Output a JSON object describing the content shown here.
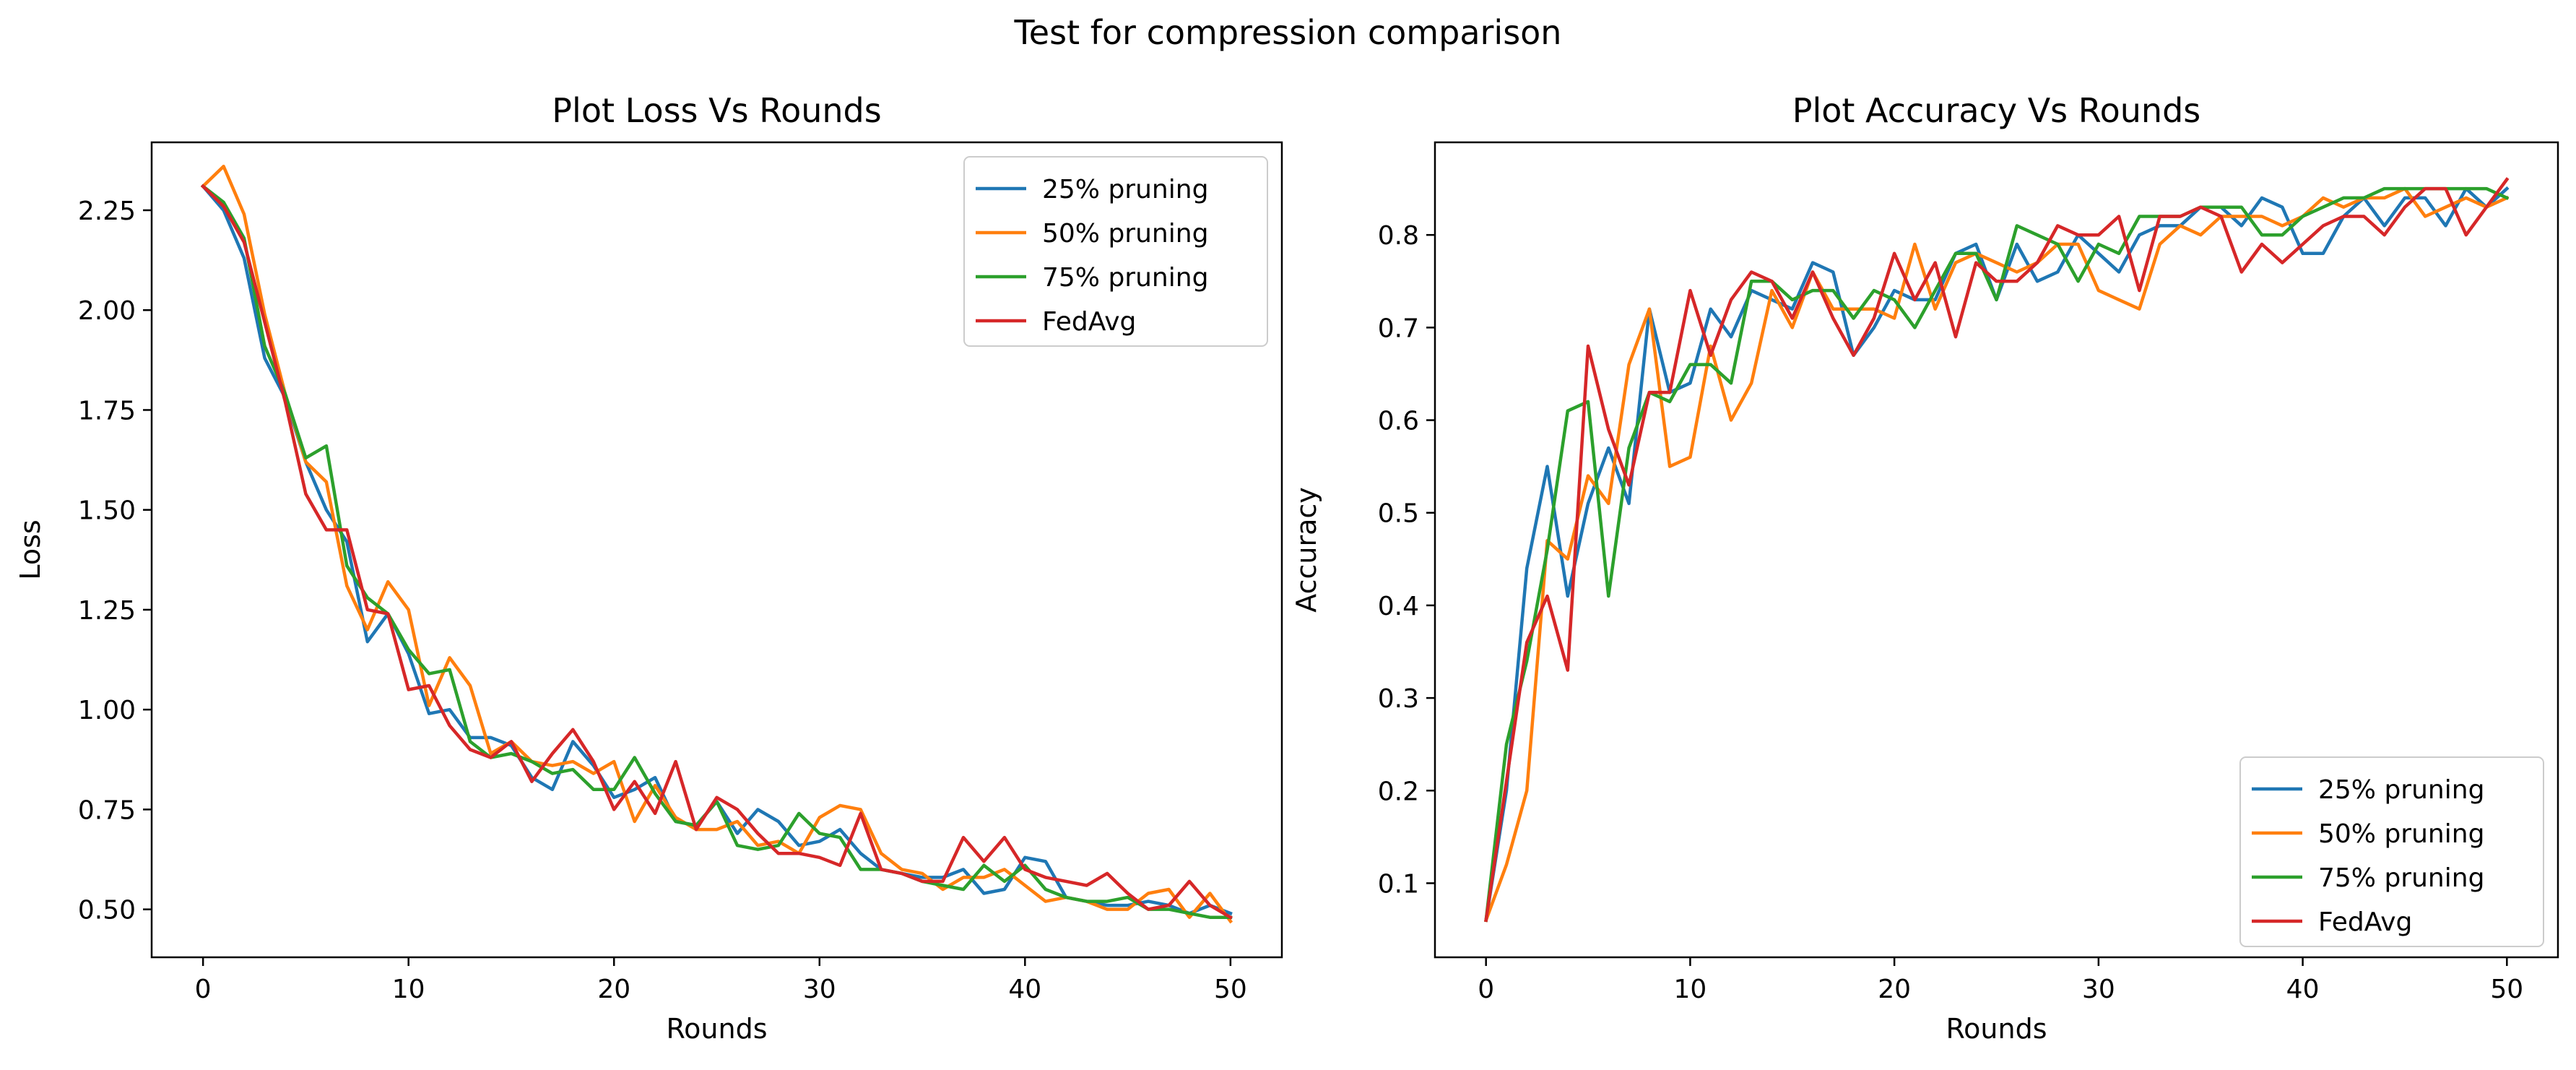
{
  "figure": {
    "title": "Test for compression comparison"
  },
  "colors": {
    "c25": "#1f77b4",
    "c50": "#ff7f0e",
    "c75": "#2ca02c",
    "fedavg": "#d62728"
  },
  "chart_data": [
    {
      "type": "line",
      "title": "Plot Loss Vs Rounds",
      "xlabel": "Rounds",
      "ylabel": "Loss",
      "xlim": [
        -2.5,
        52.5
      ],
      "ylim": [
        0.38,
        2.42
      ],
      "xticks": [
        0,
        10,
        20,
        30,
        40,
        50
      ],
      "yticks": [
        0.5,
        0.75,
        1.0,
        1.25,
        1.5,
        1.75,
        2.0,
        2.25
      ],
      "ytick_labels": [
        "0.50",
        "0.75",
        "1.00",
        "1.25",
        "1.50",
        "1.75",
        "2.00",
        "2.25"
      ],
      "xtick_labels": [
        "0",
        "10",
        "20",
        "30",
        "40",
        "50"
      ],
      "legend_position": "upper right",
      "grid": false,
      "x": [
        0,
        1,
        2,
        3,
        4,
        5,
        6,
        7,
        8,
        9,
        10,
        11,
        12,
        13,
        14,
        15,
        16,
        17,
        18,
        19,
        20,
        21,
        22,
        23,
        24,
        25,
        26,
        27,
        28,
        29,
        30,
        31,
        32,
        33,
        34,
        35,
        36,
        37,
        38,
        39,
        40,
        41,
        42,
        43,
        44,
        45,
        46,
        47,
        48,
        49,
        50
      ],
      "series": [
        {
          "name": "25% pruning",
          "color": "#1f77b4",
          "values": [
            2.31,
            2.25,
            2.13,
            1.88,
            1.78,
            1.62,
            1.5,
            1.42,
            1.17,
            1.24,
            1.14,
            0.99,
            1.0,
            0.93,
            0.93,
            0.91,
            0.83,
            0.8,
            0.92,
            0.86,
            0.78,
            0.8,
            0.83,
            0.72,
            0.71,
            0.77,
            0.69,
            0.75,
            0.72,
            0.66,
            0.67,
            0.7,
            0.64,
            0.6,
            0.59,
            0.58,
            0.58,
            0.6,
            0.54,
            0.55,
            0.63,
            0.62,
            0.53,
            0.52,
            0.51,
            0.51,
            0.52,
            0.51,
            0.49,
            0.51,
            0.49
          ]
        },
        {
          "name": "50% pruning",
          "color": "#ff7f0e",
          "values": [
            2.31,
            2.36,
            2.24,
            1.99,
            1.79,
            1.62,
            1.57,
            1.31,
            1.2,
            1.32,
            1.25,
            1.01,
            1.13,
            1.06,
            0.89,
            0.92,
            0.87,
            0.86,
            0.87,
            0.84,
            0.87,
            0.72,
            0.81,
            0.73,
            0.7,
            0.7,
            0.72,
            0.66,
            0.67,
            0.64,
            0.73,
            0.76,
            0.75,
            0.64,
            0.6,
            0.59,
            0.55,
            0.58,
            0.58,
            0.6,
            0.56,
            0.52,
            0.53,
            0.52,
            0.5,
            0.5,
            0.54,
            0.55,
            0.48,
            0.54,
            0.47
          ]
        },
        {
          "name": "75% pruning",
          "color": "#2ca02c",
          "values": [
            2.31,
            2.27,
            2.18,
            1.91,
            1.79,
            1.63,
            1.66,
            1.36,
            1.28,
            1.24,
            1.15,
            1.09,
            1.1,
            0.92,
            0.88,
            0.89,
            0.87,
            0.84,
            0.85,
            0.8,
            0.8,
            0.88,
            0.79,
            0.72,
            0.71,
            0.77,
            0.66,
            0.65,
            0.66,
            0.74,
            0.69,
            0.68,
            0.6,
            0.6,
            0.59,
            0.57,
            0.56,
            0.55,
            0.61,
            0.57,
            0.61,
            0.55,
            0.53,
            0.52,
            0.52,
            0.53,
            0.5,
            0.5,
            0.49,
            0.48,
            0.48
          ]
        },
        {
          "name": "FedAvg",
          "color": "#d62728",
          "values": [
            2.31,
            2.26,
            2.17,
            1.97,
            1.77,
            1.54,
            1.45,
            1.45,
            1.25,
            1.24,
            1.05,
            1.06,
            0.96,
            0.9,
            0.88,
            0.92,
            0.82,
            0.89,
            0.95,
            0.87,
            0.75,
            0.82,
            0.74,
            0.87,
            0.7,
            0.78,
            0.75,
            0.69,
            0.64,
            0.64,
            0.63,
            0.61,
            0.74,
            0.6,
            0.59,
            0.57,
            0.57,
            0.68,
            0.62,
            0.68,
            0.6,
            0.58,
            0.57,
            0.56,
            0.59,
            0.54,
            0.5,
            0.51,
            0.57,
            0.51,
            0.48
          ]
        }
      ]
    },
    {
      "type": "line",
      "title": "Plot Accuracy Vs Rounds",
      "xlabel": "Rounds",
      "ylabel": "Accuracy",
      "xlim": [
        -2.5,
        52.5
      ],
      "ylim": [
        0.02,
        0.9
      ],
      "xticks": [
        0,
        10,
        20,
        30,
        40,
        50
      ],
      "yticks": [
        0.1,
        0.2,
        0.3,
        0.4,
        0.5,
        0.6,
        0.7,
        0.8
      ],
      "ytick_labels": [
        "0.1",
        "0.2",
        "0.3",
        "0.4",
        "0.5",
        "0.6",
        "0.7",
        "0.8"
      ],
      "xtick_labels": [
        "0",
        "10",
        "20",
        "30",
        "40",
        "50"
      ],
      "legend_position": "lower right",
      "grid": false,
      "x": [
        0,
        1,
        2,
        3,
        4,
        5,
        6,
        7,
        8,
        9,
        10,
        11,
        12,
        13,
        14,
        15,
        16,
        17,
        18,
        19,
        20,
        21,
        22,
        23,
        24,
        25,
        26,
        27,
        28,
        29,
        30,
        31,
        32,
        33,
        34,
        35,
        36,
        37,
        38,
        39,
        40,
        41,
        42,
        43,
        44,
        45,
        46,
        47,
        48,
        49,
        50
      ],
      "series": [
        {
          "name": "25% pruning",
          "color": "#1f77b4",
          "values": [
            0.06,
            0.2,
            0.44,
            0.55,
            0.41,
            0.51,
            0.57,
            0.51,
            0.72,
            0.63,
            0.64,
            0.72,
            0.69,
            0.74,
            0.73,
            0.72,
            0.77,
            0.76,
            0.67,
            0.7,
            0.74,
            0.73,
            0.73,
            0.78,
            0.79,
            0.73,
            0.79,
            0.75,
            0.76,
            0.8,
            0.78,
            0.76,
            0.8,
            0.81,
            0.81,
            0.83,
            0.83,
            0.81,
            0.84,
            0.83,
            0.78,
            0.78,
            0.82,
            0.84,
            0.81,
            0.84,
            0.84,
            0.81,
            0.85,
            0.83,
            0.85
          ]
        },
        {
          "name": "50% pruning",
          "color": "#ff7f0e",
          "values": [
            0.06,
            0.12,
            0.2,
            0.47,
            0.45,
            0.54,
            0.51,
            0.66,
            0.72,
            0.55,
            0.56,
            0.68,
            0.6,
            0.64,
            0.74,
            0.7,
            0.76,
            0.72,
            0.72,
            0.72,
            0.71,
            0.79,
            0.72,
            0.77,
            0.78,
            0.77,
            0.76,
            0.77,
            0.79,
            0.79,
            0.74,
            0.73,
            0.72,
            0.79,
            0.81,
            0.8,
            0.82,
            0.82,
            0.82,
            0.81,
            0.82,
            0.84,
            0.83,
            0.84,
            0.84,
            0.85,
            0.82,
            0.83,
            0.84,
            0.83,
            0.84
          ]
        },
        {
          "name": "75% pruning",
          "color": "#2ca02c",
          "values": [
            0.06,
            0.25,
            0.34,
            0.46,
            0.61,
            0.62,
            0.41,
            0.57,
            0.63,
            0.62,
            0.66,
            0.66,
            0.64,
            0.75,
            0.75,
            0.73,
            0.74,
            0.74,
            0.71,
            0.74,
            0.73,
            0.7,
            0.74,
            0.78,
            0.78,
            0.73,
            0.81,
            0.8,
            0.79,
            0.75,
            0.79,
            0.78,
            0.82,
            0.82,
            0.82,
            0.83,
            0.83,
            0.83,
            0.8,
            0.8,
            0.82,
            0.83,
            0.84,
            0.84,
            0.85,
            0.85,
            0.85,
            0.85,
            0.85,
            0.85,
            0.84
          ]
        },
        {
          "name": "FedAvg",
          "color": "#d62728",
          "values": [
            0.06,
            0.21,
            0.36,
            0.41,
            0.33,
            0.68,
            0.59,
            0.53,
            0.63,
            0.63,
            0.74,
            0.67,
            0.73,
            0.76,
            0.75,
            0.71,
            0.76,
            0.71,
            0.67,
            0.71,
            0.78,
            0.73,
            0.77,
            0.69,
            0.77,
            0.75,
            0.75,
            0.77,
            0.81,
            0.8,
            0.8,
            0.82,
            0.74,
            0.82,
            0.82,
            0.83,
            0.82,
            0.76,
            0.79,
            0.77,
            0.79,
            0.81,
            0.82,
            0.82,
            0.8,
            0.83,
            0.85,
            0.85,
            0.8,
            0.83,
            0.86
          ]
        }
      ]
    }
  ]
}
